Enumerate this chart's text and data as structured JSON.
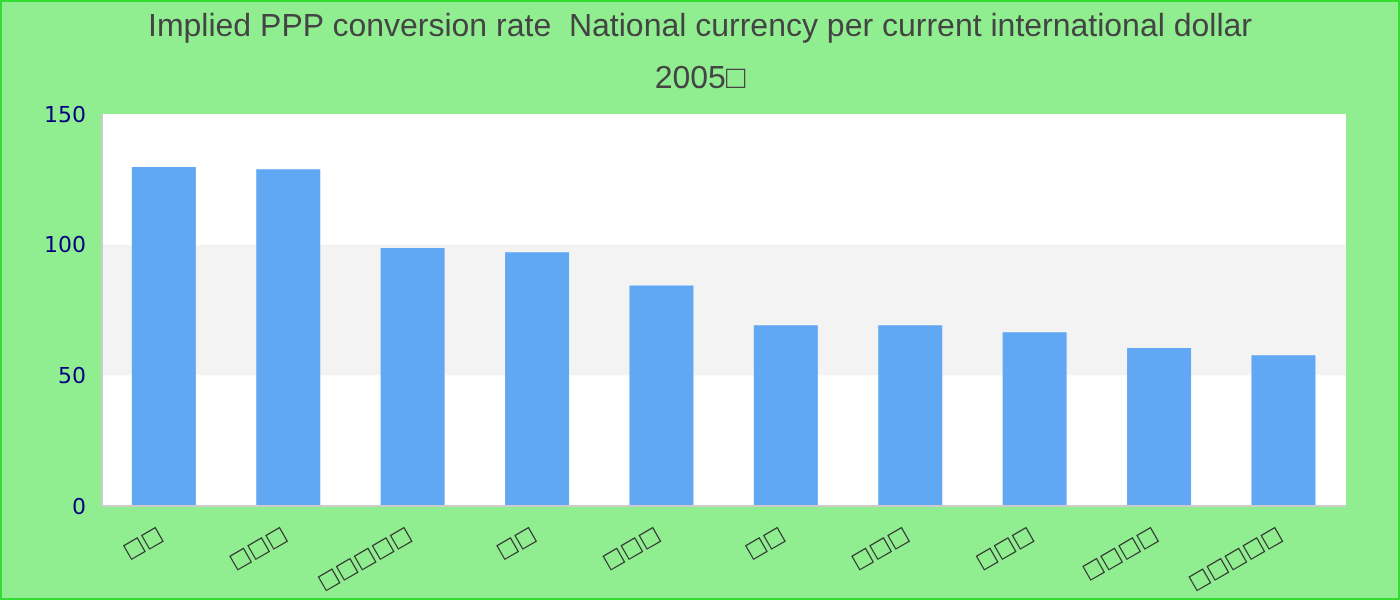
{
  "chart_data": {
    "type": "bar",
    "title": "Implied PPP conversion rate  National currency per current international dollar",
    "subtitle": "2005□",
    "categories": [
      "□□",
      "□□□",
      "□□□□□",
      "□□",
      "□□□",
      "□□",
      "□□□",
      "□□□",
      "□□□□",
      "□□□□□"
    ],
    "values": [
      129.7,
      128.9,
      98.7,
      97.1,
      84.4,
      69.2,
      69.2,
      66.5,
      60.5,
      57.7
    ],
    "color": "#60a8f4",
    "ylim": [
      0,
      150
    ],
    "yticks": [
      0,
      50,
      100,
      150
    ],
    "bands": [
      {
        "axis": "y",
        "from": 50,
        "to": 100,
        "color": "#f3f3f3"
      }
    ]
  }
}
